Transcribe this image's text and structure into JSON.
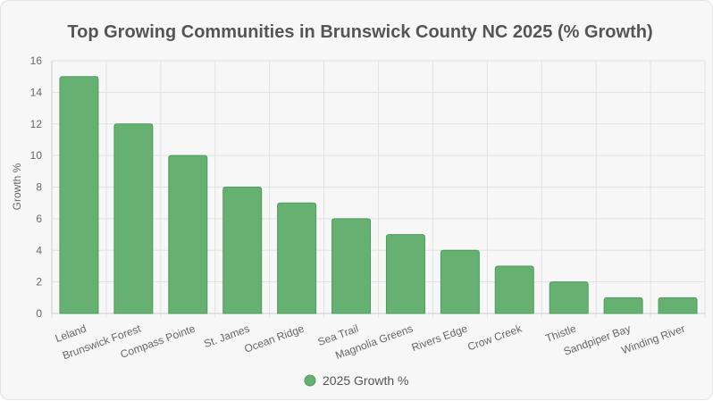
{
  "chart_data": {
    "type": "bar",
    "title": "Top Growing Communities in Brunswick County NC 2025 (% Growth)",
    "ylabel": "Growth %",
    "xlabel": "",
    "categories": [
      "Leland",
      "Brunswick Forest",
      "Compass Pointe",
      "St. James",
      "Ocean Ridge",
      "Sea Trail",
      "Magnolia Greens",
      "Rivers Edge",
      "Crow Creek",
      "Thistle",
      "Sandpiper Bay",
      "Winding River"
    ],
    "series": [
      {
        "name": "2025 Growth %",
        "values": [
          15,
          12,
          10,
          8,
          7,
          6,
          5,
          4,
          3,
          2,
          1,
          1
        ]
      }
    ],
    "ylim": [
      0,
      16
    ],
    "yticks": [
      0,
      2,
      4,
      6,
      8,
      10,
      12,
      14,
      16
    ],
    "grid": true,
    "legend": "bottom",
    "colors": {
      "bar_fill": "#66b172",
      "bar_stroke": "#4f9d5c",
      "grid": "#e2e2e2",
      "axis": "#cccccc"
    }
  }
}
